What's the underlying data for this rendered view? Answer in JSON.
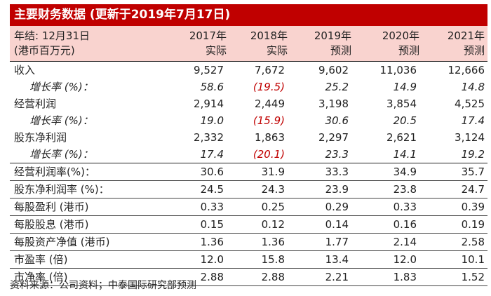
{
  "title": "主要财务数据 (更新于2019年7月17日)",
  "header": {
    "label_line1": "年结: 12月31日",
    "label_line2": "(港币百万元)",
    "years": [
      {
        "year": "2017年",
        "type": "实际"
      },
      {
        "year": "2018年",
        "type": "实际"
      },
      {
        "year": "2019年",
        "type": "预测"
      },
      {
        "year": "2020年",
        "type": "预测"
      },
      {
        "year": "2021年",
        "type": "预测"
      }
    ]
  },
  "rows": [
    {
      "label": "收入",
      "values": [
        "9,527",
        "7,672",
        "9,602",
        "11,036",
        "12,666"
      ]
    },
    {
      "label": "增长率 (%)：",
      "values": [
        "58.6",
        "(19.5)",
        "25.2",
        "14.9",
        "14.8"
      ]
    },
    {
      "label": "经营利润",
      "values": [
        "2,914",
        "2,449",
        "3,198",
        "3,854",
        "4,525"
      ]
    },
    {
      "label": "增长率 (%)：",
      "values": [
        "19.0",
        "(15.9)",
        "30.6",
        "20.5",
        "17.4"
      ]
    },
    {
      "label": "股东净利润",
      "values": [
        "2,332",
        "1,863",
        "2,297",
        "2,621",
        "3,124"
      ]
    },
    {
      "label": "增长率 (%)：",
      "values": [
        "17.4",
        "(20.1)",
        "23.3",
        "14.1",
        "19.2"
      ]
    },
    {
      "label": "经营利润率(%)：",
      "values": [
        "30.6",
        "31.9",
        "33.3",
        "34.9",
        "35.7"
      ]
    },
    {
      "label": "股东净利润率 (%)：",
      "values": [
        "24.5",
        "24.3",
        "23.9",
        "23.8",
        "24.7"
      ]
    },
    {
      "label": "每股盈利 (港币)",
      "values": [
        "0.33",
        "0.25",
        "0.29",
        "0.33",
        "0.39"
      ]
    },
    {
      "label": "每股股息 (港币)",
      "values": [
        "0.15",
        "0.12",
        "0.14",
        "0.16",
        "0.19"
      ]
    },
    {
      "label": "每股资产净值 (港币)",
      "values": [
        "1.36",
        "1.36",
        "1.77",
        "2.14",
        "2.58"
      ]
    },
    {
      "label": "市盈率 (倍)",
      "values": [
        "12.0",
        "15.8",
        "13.4",
        "12.0",
        "10.1"
      ]
    },
    {
      "label": "市净率 (倍)",
      "values": [
        "2.88",
        "2.88",
        "2.21",
        "1.83",
        "1.52"
      ]
    }
  ],
  "source": "资料来源：公司资料；中泰国际研究部预测",
  "colors": {
    "accent": "#c00000",
    "header_bg": "#f9d3cf"
  }
}
